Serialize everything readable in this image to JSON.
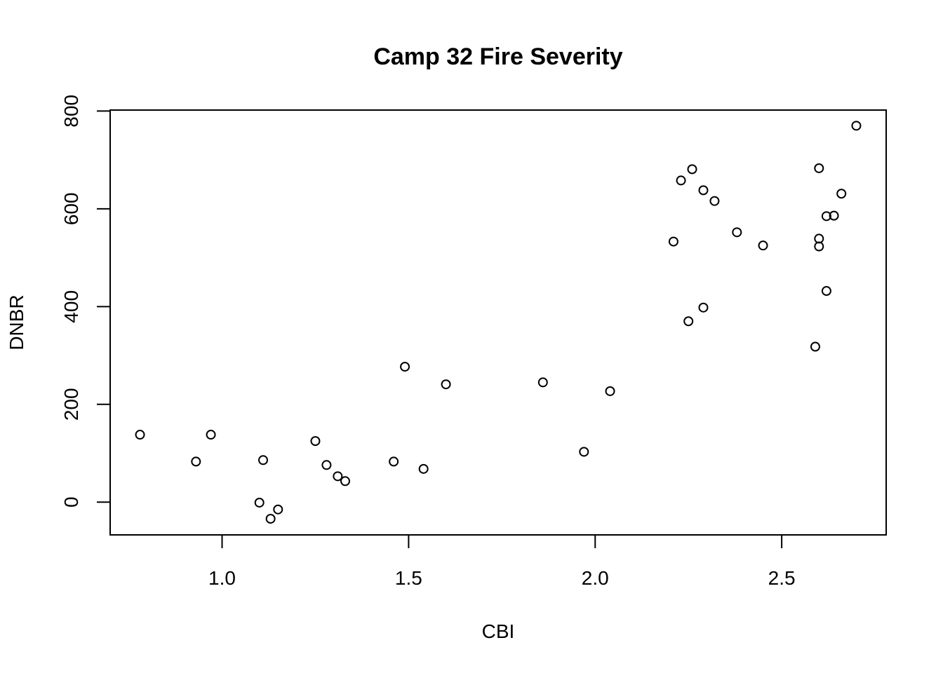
{
  "chart_data": {
    "type": "scatter",
    "title": "Camp 32 Fire Severity",
    "xlabel": "CBI",
    "ylabel": "DNBR",
    "xlim": [
      0.7,
      2.78
    ],
    "ylim": [
      -67,
      802
    ],
    "x_ticks": [
      1.0,
      1.5,
      2.0,
      2.5
    ],
    "x_tick_labels": [
      "1.0",
      "1.5",
      "2.0",
      "2.5"
    ],
    "y_ticks": [
      0,
      200,
      400,
      600,
      800
    ],
    "y_tick_labels": [
      "0",
      "200",
      "400",
      "600",
      "800"
    ],
    "grid": false,
    "legend": "none",
    "marker": "open-circle",
    "points": [
      {
        "x": 0.78,
        "y": 138
      },
      {
        "x": 0.93,
        "y": 83
      },
      {
        "x": 0.97,
        "y": 138
      },
      {
        "x": 1.1,
        "y": -1
      },
      {
        "x": 1.11,
        "y": 86
      },
      {
        "x": 1.13,
        "y": -34
      },
      {
        "x": 1.15,
        "y": -15
      },
      {
        "x": 1.25,
        "y": 125
      },
      {
        "x": 1.28,
        "y": 76
      },
      {
        "x": 1.31,
        "y": 53
      },
      {
        "x": 1.33,
        "y": 43
      },
      {
        "x": 1.46,
        "y": 83
      },
      {
        "x": 1.49,
        "y": 277
      },
      {
        "x": 1.54,
        "y": 68
      },
      {
        "x": 1.6,
        "y": 241
      },
      {
        "x": 1.86,
        "y": 245
      },
      {
        "x": 1.97,
        "y": 103
      },
      {
        "x": 2.04,
        "y": 227
      },
      {
        "x": 2.21,
        "y": 533
      },
      {
        "x": 2.23,
        "y": 658
      },
      {
        "x": 2.25,
        "y": 370
      },
      {
        "x": 2.26,
        "y": 681
      },
      {
        "x": 2.29,
        "y": 638
      },
      {
        "x": 2.29,
        "y": 398
      },
      {
        "x": 2.32,
        "y": 616
      },
      {
        "x": 2.38,
        "y": 552
      },
      {
        "x": 2.45,
        "y": 525
      },
      {
        "x": 2.59,
        "y": 318
      },
      {
        "x": 2.6,
        "y": 683
      },
      {
        "x": 2.6,
        "y": 539
      },
      {
        "x": 2.6,
        "y": 523
      },
      {
        "x": 2.62,
        "y": 585
      },
      {
        "x": 2.62,
        "y": 432
      },
      {
        "x": 2.64,
        "y": 586
      },
      {
        "x": 2.66,
        "y": 631
      },
      {
        "x": 2.7,
        "y": 770
      }
    ]
  }
}
